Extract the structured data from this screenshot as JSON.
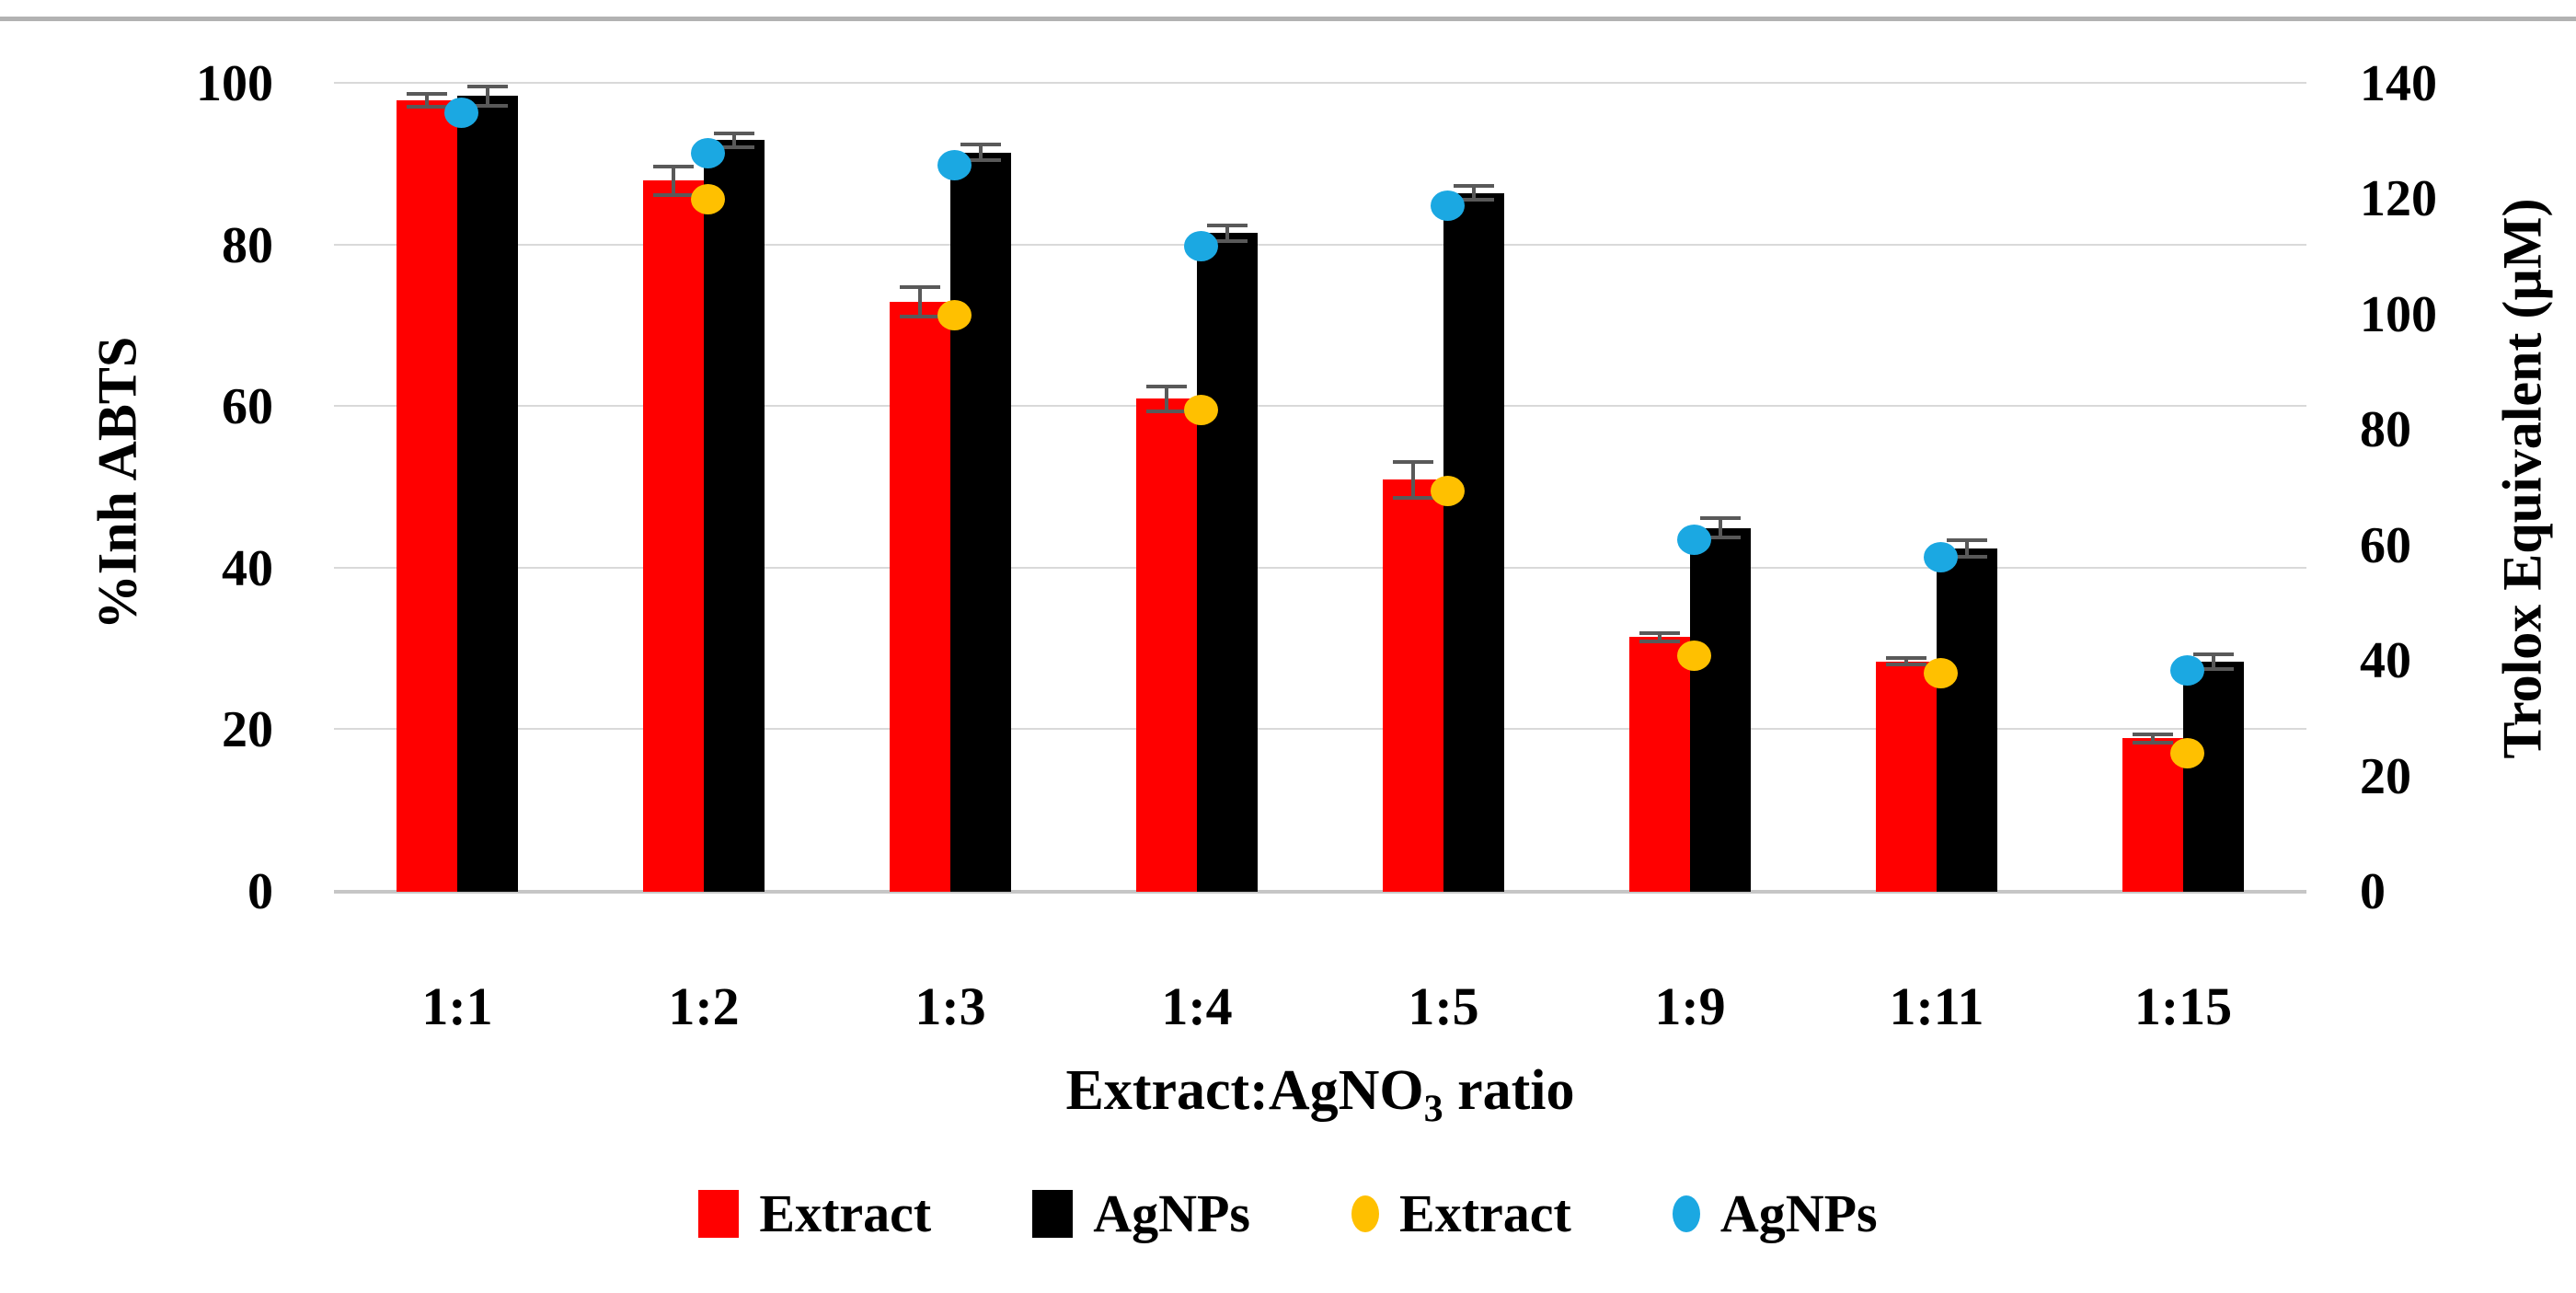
{
  "figure": {
    "type_note": "dual-axis grouped bar chart with overlaid scatter points",
    "background": "#ffffff"
  },
  "chart_data": {
    "type": "bar",
    "subtype": "grouped bars (left axis) + scatter markers (right axis)",
    "categories": [
      "1:1",
      "1:2",
      "1:3",
      "1:4",
      "1:5",
      "1:9",
      "1:11",
      "1:15"
    ],
    "series": [
      {
        "name": "Extract",
        "plot_as": "bar",
        "axis": "left",
        "color": "#FF0000",
        "values": [
          98,
          88,
          73,
          61,
          51,
          31.5,
          28.5,
          19
        ],
        "errors": [
          0.8,
          1.8,
          1.8,
          1.5,
          2.2,
          0.5,
          0.4,
          0.5
        ]
      },
      {
        "name": "AgNPs",
        "plot_as": "bar",
        "axis": "left",
        "color": "#000000",
        "values": [
          98.5,
          93,
          91.5,
          81.5,
          86.5,
          45,
          42.5,
          28.5
        ],
        "errors": [
          1.2,
          0.9,
          1.0,
          1.0,
          0.9,
          1.2,
          1.0,
          0.9
        ]
      },
      {
        "name": "Extract",
        "plot_as": "scatter",
        "axis": "right",
        "color": "#FFC000",
        "values": [
          null,
          120,
          100,
          83.5,
          69.5,
          41,
          38,
          24
        ]
      },
      {
        "name": "AgNPs",
        "plot_as": "scatter",
        "axis": "right",
        "color": "#1BA8E2",
        "values": [
          135,
          128,
          126,
          112,
          119,
          61,
          58,
          38.5
        ]
      }
    ],
    "left_axis": {
      "label": "%Inh ABTS",
      "min": 0,
      "max": 100,
      "step": 20,
      "ticks": [
        0,
        20,
        40,
        60,
        80,
        100
      ]
    },
    "right_axis": {
      "label": "Trolox Equivalent (µM)",
      "min": 0,
      "max": 140,
      "step": 20,
      "ticks": [
        0,
        20,
        40,
        60,
        80,
        100,
        120,
        140
      ]
    },
    "x_axis": {
      "label_prefix": "Extract:AgNO",
      "label_sub": "3",
      "label_suffix": " ratio"
    },
    "grid": "horizontal gridlines at left-axis ticks",
    "legend_position": "bottom-center",
    "legend": [
      {
        "label": "Extract",
        "swatch": "square",
        "color": "#FF0000"
      },
      {
        "label": "AgNPs",
        "swatch": "square",
        "color": "#000000"
      },
      {
        "label": "Extract",
        "swatch": "circle",
        "color": "#FFC000"
      },
      {
        "label": "AgNPs",
        "swatch": "circle",
        "color": "#1BA8E2"
      }
    ],
    "colors": {
      "gridline": "#d9d9d9",
      "zero_line": "#c6c6c6",
      "error_bar": "#595959",
      "top_border": "#b2b2b2"
    }
  }
}
